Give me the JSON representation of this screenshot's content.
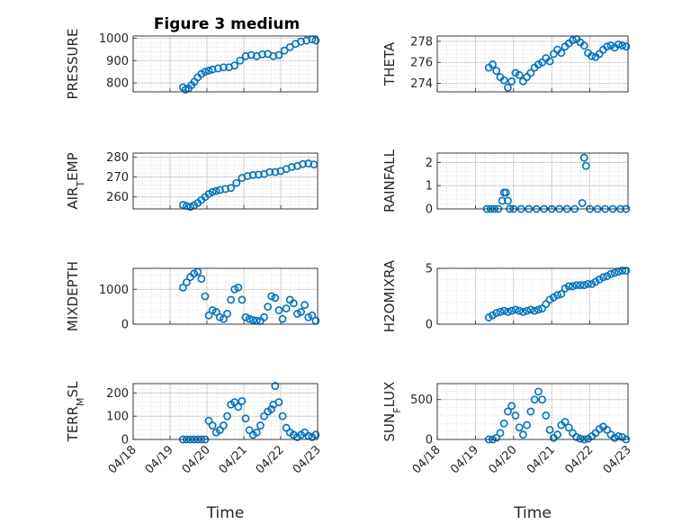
{
  "figure_title": "Figure 3 medium",
  "colors": {
    "marker": "#0072bd",
    "axis": "#262626",
    "grid": "#d0d0d0"
  },
  "chart_data": [
    {
      "type": "scatter",
      "ylabel": "PRESSURE",
      "xlabel": "",
      "xlim": [
        0,
        5
      ],
      "ylim": [
        760,
        1010
      ],
      "yticks": [
        800,
        900,
        1000
      ],
      "yticklabels": [
        "800",
        "900",
        "1000"
      ],
      "show_xticklabels": false,
      "x": [
        1.35,
        1.42,
        1.5,
        1.58,
        1.66,
        1.75,
        1.85,
        1.95,
        2.05,
        2.15,
        2.3,
        2.45,
        2.6,
        2.75,
        2.9,
        3.05,
        3.2,
        3.35,
        3.5,
        3.65,
        3.8,
        3.95,
        4.1,
        4.25,
        4.4,
        4.55,
        4.7,
        4.85,
        4.95
      ],
      "y": [
        780,
        770,
        775,
        790,
        805,
        825,
        840,
        850,
        855,
        860,
        865,
        870,
        870,
        878,
        900,
        920,
        925,
        920,
        928,
        930,
        920,
        925,
        945,
        960,
        975,
        985,
        990,
        995,
        990
      ]
    },
    {
      "type": "scatter",
      "ylabel": "THETA",
      "xlabel": "",
      "xlim": [
        0,
        5
      ],
      "ylim": [
        273.2,
        278.5
      ],
      "yticks": [
        274,
        276,
        278
      ],
      "yticklabels": [
        "274",
        "276",
        "278"
      ],
      "show_xticklabels": false,
      "x": [
        1.35,
        1.45,
        1.55,
        1.65,
        1.75,
        1.85,
        1.95,
        2.05,
        2.15,
        2.25,
        2.35,
        2.45,
        2.55,
        2.65,
        2.75,
        2.85,
        2.95,
        3.05,
        3.15,
        3.25,
        3.35,
        3.45,
        3.55,
        3.65,
        3.75,
        3.85,
        3.95,
        4.05,
        4.15,
        4.25,
        4.35,
        4.45,
        4.55,
        4.65,
        4.75,
        4.85,
        4.95
      ],
      "y": [
        275.5,
        275.8,
        275.2,
        274.6,
        274.3,
        273.6,
        274.2,
        275.0,
        274.8,
        274.2,
        274.6,
        275.0,
        275.5,
        275.8,
        276.0,
        276.4,
        276.1,
        276.8,
        277.2,
        276.9,
        277.5,
        277.8,
        278.1,
        278.2,
        277.9,
        277.6,
        276.9,
        276.6,
        276.5,
        276.8,
        277.2,
        277.5,
        277.6,
        277.4,
        277.7,
        277.6,
        277.5
      ]
    },
    {
      "type": "scatter",
      "ylabel": "AIR_TEMP",
      "xlabel": "",
      "xlim": [
        0,
        5
      ],
      "ylim": [
        254,
        282
      ],
      "yticks": [
        260,
        270,
        280
      ],
      "yticklabels": [
        "260",
        "270",
        "280"
      ],
      "show_xticklabels": false,
      "x": [
        1.35,
        1.45,
        1.55,
        1.65,
        1.75,
        1.85,
        1.95,
        2.05,
        2.15,
        2.25,
        2.35,
        2.5,
        2.65,
        2.8,
        2.95,
        3.1,
        3.25,
        3.4,
        3.55,
        3.7,
        3.85,
        4.0,
        4.15,
        4.3,
        4.45,
        4.6,
        4.75,
        4.9
      ],
      "y": [
        256,
        255.5,
        255,
        255.8,
        257,
        258.5,
        260,
        261.5,
        262.5,
        263,
        263.5,
        264,
        264.5,
        267,
        269.5,
        270.5,
        271,
        271.2,
        271.5,
        272.5,
        272.5,
        273,
        274,
        275,
        275.5,
        276.5,
        276.8,
        276.3
      ]
    },
    {
      "type": "scatter",
      "ylabel": "RAINFALL",
      "xlabel": "",
      "xlim": [
        0,
        5
      ],
      "ylim": [
        0,
        2.4
      ],
      "yticks": [
        0,
        1,
        2
      ],
      "yticklabels": [
        "0",
        "1",
        "2"
      ],
      "show_xticklabels": false,
      "x": [
        1.3,
        1.4,
        1.5,
        1.6,
        1.7,
        1.75,
        1.8,
        1.85,
        1.9,
        2.0,
        2.2,
        2.4,
        2.6,
        2.8,
        3.0,
        3.2,
        3.4,
        3.6,
        3.8,
        3.85,
        3.9,
        4.0,
        4.2,
        4.4,
        4.6,
        4.8,
        4.95
      ],
      "y": [
        0,
        0,
        0,
        0,
        0.35,
        0.7,
        0.7,
        0.35,
        0,
        0,
        0,
        0,
        0,
        0,
        0,
        0,
        0,
        0,
        0.25,
        2.2,
        1.85,
        0,
        0,
        0,
        0,
        0,
        0
      ]
    },
    {
      "type": "scatter",
      "ylabel": "MIXDEPTH",
      "xlabel": "",
      "xlim": [
        0,
        5
      ],
      "ylim": [
        0,
        1600
      ],
      "yticks": [
        0,
        1000
      ],
      "yticklabels": [
        "0",
        "1000"
      ],
      "show_xticklabels": false,
      "x": [
        1.35,
        1.45,
        1.55,
        1.65,
        1.75,
        1.85,
        1.95,
        2.05,
        2.15,
        2.25,
        2.35,
        2.45,
        2.55,
        2.65,
        2.75,
        2.85,
        2.95,
        3.05,
        3.15,
        3.25,
        3.35,
        3.45,
        3.55,
        3.65,
        3.75,
        3.85,
        3.95,
        4.05,
        4.15,
        4.25,
        4.35,
        4.45,
        4.55,
        4.65,
        4.75,
        4.85,
        4.95
      ],
      "y": [
        1050,
        1200,
        1350,
        1450,
        1500,
        1300,
        800,
        250,
        400,
        350,
        200,
        150,
        300,
        700,
        1000,
        1050,
        700,
        200,
        150,
        120,
        100,
        90,
        200,
        500,
        800,
        750,
        400,
        150,
        450,
        700,
        600,
        300,
        350,
        550,
        200,
        250,
        100
      ]
    },
    {
      "type": "scatter",
      "ylabel": "H2OMIXRA",
      "xlabel": "",
      "xlim": [
        0,
        5
      ],
      "ylim": [
        0,
        5
      ],
      "yticks": [
        0,
        5
      ],
      "yticklabels": [
        "0",
        "5"
      ],
      "show_xticklabels": false,
      "x": [
        1.35,
        1.45,
        1.55,
        1.65,
        1.75,
        1.85,
        1.95,
        2.05,
        2.15,
        2.25,
        2.35,
        2.45,
        2.55,
        2.65,
        2.75,
        2.85,
        2.95,
        3.05,
        3.15,
        3.25,
        3.35,
        3.45,
        3.55,
        3.65,
        3.75,
        3.85,
        3.95,
        4.05,
        4.15,
        4.25,
        4.35,
        4.45,
        4.55,
        4.65,
        4.75,
        4.85,
        4.95
      ],
      "y": [
        0.6,
        0.8,
        1.0,
        1.1,
        1.2,
        1.1,
        1.2,
        1.3,
        1.2,
        1.1,
        1.2,
        1.3,
        1.2,
        1.3,
        1.4,
        1.8,
        2.2,
        2.4,
        2.6,
        2.7,
        3.2,
        3.4,
        3.4,
        3.5,
        3.5,
        3.5,
        3.6,
        3.6,
        3.8,
        4.0,
        4.2,
        4.3,
        4.5,
        4.6,
        4.7,
        4.8,
        4.8
      ]
    },
    {
      "type": "scatter",
      "ylabel": "TERR_MSL",
      "xlabel": "Time",
      "xlim": [
        0,
        5
      ],
      "ylim": [
        0,
        240
      ],
      "yticks": [
        0,
        100,
        200
      ],
      "yticklabels": [
        "0",
        "100",
        "200"
      ],
      "show_xticklabels": true,
      "xticks": [
        0,
        1,
        2,
        3,
        4,
        5
      ],
      "xticklabels": [
        "04/18",
        "04/19",
        "04/20",
        "04/21",
        "04/22",
        "04/23"
      ],
      "x": [
        1.35,
        1.45,
        1.55,
        1.65,
        1.75,
        1.85,
        1.95,
        2.05,
        2.15,
        2.25,
        2.35,
        2.45,
        2.55,
        2.65,
        2.75,
        2.85,
        2.95,
        3.05,
        3.15,
        3.25,
        3.35,
        3.45,
        3.55,
        3.65,
        3.75,
        3.8,
        3.85,
        3.95,
        4.05,
        4.15,
        4.25,
        4.35,
        4.45,
        4.55,
        4.65,
        4.75,
        4.85,
        4.95
      ],
      "y": [
        0,
        0,
        0,
        0,
        0,
        0,
        0,
        80,
        60,
        30,
        40,
        60,
        100,
        150,
        160,
        140,
        165,
        90,
        40,
        20,
        30,
        60,
        100,
        120,
        130,
        150,
        230,
        160,
        100,
        50,
        30,
        20,
        10,
        20,
        30,
        15,
        10,
        20
      ]
    },
    {
      "type": "scatter",
      "ylabel": "SUN_FLUX",
      "xlabel": "Time",
      "xlim": [
        0,
        5
      ],
      "ylim": [
        0,
        700
      ],
      "yticks": [
        0,
        500
      ],
      "yticklabels": [
        "0",
        "500"
      ],
      "show_xticklabels": true,
      "xticks": [
        0,
        1,
        2,
        3,
        4,
        5
      ],
      "xticklabels": [
        "04/18",
        "04/19",
        "04/20",
        "04/21",
        "04/22",
        "04/23"
      ],
      "x": [
        1.35,
        1.45,
        1.55,
        1.65,
        1.75,
        1.85,
        1.95,
        2.05,
        2.15,
        2.25,
        2.35,
        2.45,
        2.55,
        2.65,
        2.75,
        2.85,
        2.95,
        3.05,
        3.15,
        3.25,
        3.35,
        3.45,
        3.55,
        3.65,
        3.75,
        3.85,
        3.95,
        4.05,
        4.15,
        4.25,
        4.35,
        4.45,
        4.55,
        4.65,
        4.75,
        4.85,
        4.95
      ],
      "y": [
        0,
        0,
        20,
        80,
        200,
        350,
        420,
        300,
        150,
        60,
        180,
        350,
        500,
        600,
        500,
        300,
        120,
        20,
        60,
        180,
        220,
        150,
        80,
        30,
        10,
        0,
        10,
        40,
        80,
        130,
        160,
        120,
        60,
        20,
        40,
        30,
        0
      ]
    }
  ]
}
